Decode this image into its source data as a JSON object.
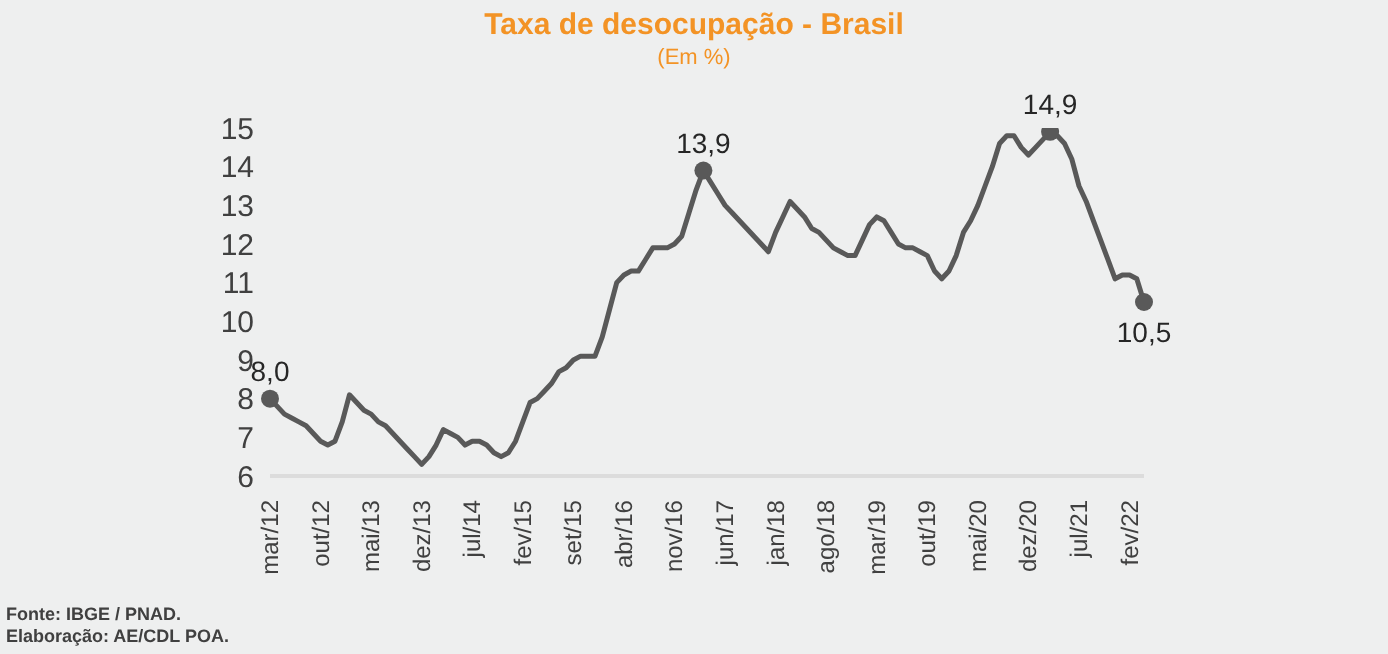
{
  "chart_data": {
    "type": "line",
    "title": "Taxa de desocupação - Brasil",
    "subtitle": "(Em %)",
    "annotations": [
      "Fonte: IBGE / PNAD.",
      "Elaboração: AE/CDL POA."
    ],
    "categories": [
      "mar/12",
      null,
      null,
      null,
      null,
      null,
      null,
      "out/12",
      null,
      null,
      null,
      null,
      null,
      null,
      "mai/13",
      null,
      null,
      null,
      null,
      null,
      null,
      "dez/13",
      null,
      null,
      null,
      null,
      null,
      null,
      "jul/14",
      null,
      null,
      null,
      null,
      null,
      null,
      "fev/15",
      null,
      null,
      null,
      null,
      null,
      null,
      "set/15",
      null,
      null,
      null,
      null,
      null,
      null,
      "abr/16",
      null,
      null,
      null,
      null,
      null,
      null,
      "nov/16",
      null,
      null,
      null,
      null,
      null,
      null,
      "jun/17",
      null,
      null,
      null,
      null,
      null,
      null,
      "jan/18",
      null,
      null,
      null,
      null,
      null,
      null,
      "ago/18",
      null,
      null,
      null,
      null,
      null,
      null,
      "mar/19",
      null,
      null,
      null,
      null,
      null,
      null,
      "out/19",
      null,
      null,
      null,
      null,
      null,
      null,
      "mai/20",
      null,
      null,
      null,
      null,
      null,
      null,
      "dez/20",
      null,
      null,
      null,
      null,
      null,
      null,
      "jul/21",
      null,
      null,
      null,
      null,
      null,
      null,
      "fev/22",
      null,
      null
    ],
    "series": [
      {
        "color": "#595959",
        "values": [
          8.0,
          7.8,
          7.6,
          7.5,
          7.4,
          7.3,
          7.1,
          6.9,
          6.8,
          6.9,
          7.4,
          8.1,
          7.9,
          7.7,
          7.6,
          7.4,
          7.3,
          7.1,
          6.9,
          6.7,
          6.5,
          6.3,
          6.5,
          6.8,
          7.2,
          7.1,
          7.0,
          6.8,
          6.9,
          6.9,
          6.8,
          6.6,
          6.5,
          6.6,
          6.9,
          7.4,
          7.9,
          8.0,
          8.2,
          8.4,
          8.7,
          8.8,
          9.0,
          9.1,
          9.1,
          9.1,
          9.6,
          10.3,
          11.0,
          11.2,
          11.3,
          11.3,
          11.6,
          11.9,
          11.9,
          11.9,
          12.0,
          12.2,
          12.8,
          13.4,
          13.9,
          13.6,
          13.3,
          13.0,
          12.8,
          12.6,
          12.4,
          12.2,
          12.0,
          11.8,
          12.3,
          12.7,
          13.1,
          12.9,
          12.7,
          12.4,
          12.3,
          12.1,
          11.9,
          11.8,
          11.7,
          11.7,
          12.1,
          12.5,
          12.7,
          12.6,
          12.3,
          12.0,
          11.9,
          11.9,
          11.8,
          11.7,
          11.3,
          11.1,
          11.3,
          11.7,
          12.3,
          12.6,
          13.0,
          13.5,
          14.0,
          14.6,
          14.8,
          14.8,
          14.5,
          14.3,
          14.5,
          14.7,
          14.9,
          14.8,
          14.6,
          14.2,
          13.5,
          13.1,
          12.6,
          12.1,
          11.6,
          11.1,
          11.2,
          11.2,
          11.1,
          10.5
        ],
        "value_labels": [
          "8,0",
          null,
          null,
          null,
          null,
          null,
          null,
          null,
          null,
          null,
          null,
          null,
          null,
          null,
          null,
          null,
          null,
          null,
          null,
          null,
          null,
          null,
          null,
          null,
          null,
          null,
          null,
          null,
          null,
          null,
          null,
          null,
          null,
          null,
          null,
          null,
          null,
          null,
          null,
          null,
          null,
          null,
          null,
          null,
          null,
          null,
          null,
          null,
          null,
          null,
          null,
          null,
          null,
          null,
          null,
          null,
          null,
          null,
          null,
          null,
          "13,9",
          null,
          null,
          null,
          null,
          null,
          null,
          null,
          null,
          null,
          null,
          null,
          null,
          null,
          null,
          null,
          null,
          null,
          null,
          null,
          null,
          null,
          null,
          null,
          null,
          null,
          null,
          null,
          null,
          null,
          null,
          null,
          null,
          null,
          null,
          null,
          null,
          null,
          null,
          null,
          null,
          null,
          null,
          null,
          null,
          null,
          null,
          null,
          "14,9",
          null,
          null,
          null,
          null,
          null,
          null,
          null,
          null,
          null,
          null,
          null,
          null,
          "10,5"
        ]
      }
    ],
    "ylim": [
      6,
      15
    ],
    "yticks": [
      6,
      7,
      8,
      9,
      10,
      11,
      12,
      13,
      14,
      15
    ],
    "marker": "none",
    "line_style": "solid"
  }
}
